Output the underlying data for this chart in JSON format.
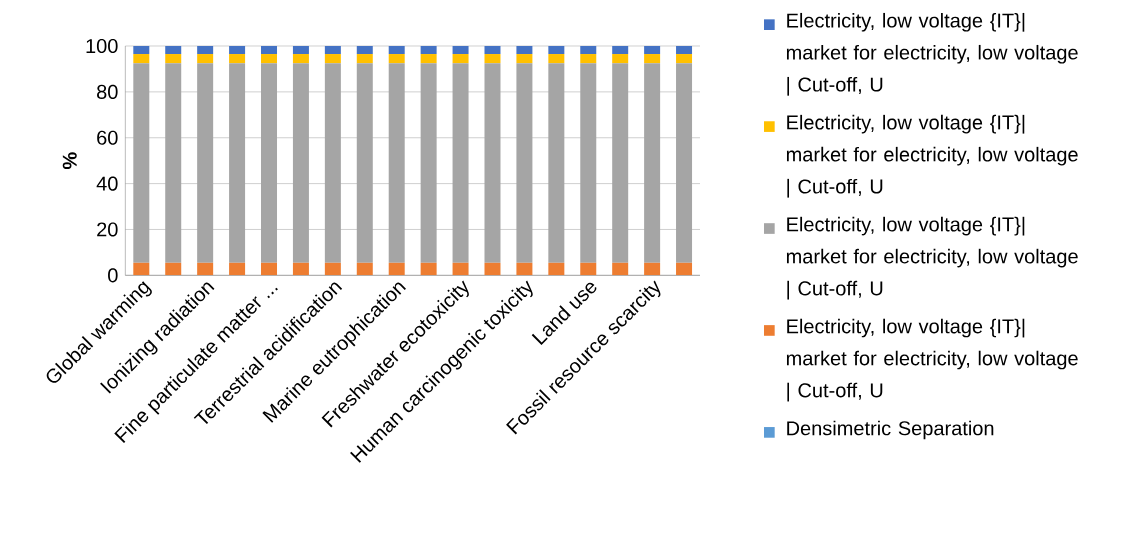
{
  "chart_data": {
    "type": "bar",
    "stacked": true,
    "ylabel": "%",
    "categories": [
      "Global warming",
      null,
      "Ionizing radiation",
      null,
      "Fine particulate matter ...",
      null,
      "Terrestrial acidification",
      null,
      "Marine eutrophication",
      null,
      "Freshwater ecotoxicity",
      null,
      "Human carcinogenic toxicity",
      null,
      "Land use",
      null,
      "Fossil resource scarcity",
      null
    ],
    "series": [
      {
        "name": "Densimetric Separation",
        "color": "#5b9bd5",
        "values": [
          0,
          0,
          0,
          0,
          0,
          0,
          0,
          0,
          0,
          0,
          0,
          0,
          0,
          0,
          0,
          0,
          0,
          0
        ]
      },
      {
        "name": "Electricity, low voltage {IT}| market for electricity, low voltage | Cut-off, U",
        "color": "#ed7d31",
        "values": [
          5.5,
          5.5,
          5.5,
          5.5,
          5.5,
          5.5,
          5.5,
          5.5,
          5.5,
          5.5,
          5.5,
          5.5,
          5.5,
          5.5,
          5.5,
          5.5,
          5.5,
          5.5
        ]
      },
      {
        "name": "Electricity, low voltage {IT}| market for electricity, low voltage | Cut-off, U",
        "color": "#a5a5a5",
        "values": [
          87,
          87,
          87,
          87,
          87,
          87,
          87,
          87,
          87,
          87,
          87,
          87,
          87,
          87,
          87,
          87,
          87,
          87
        ]
      },
      {
        "name": "Electricity, low voltage {IT}| market for electricity, low voltage | Cut-off, U",
        "color": "#ffc000",
        "values": [
          4,
          4,
          4,
          4,
          4,
          4,
          4,
          4,
          4,
          4,
          4,
          4,
          4,
          4,
          4,
          4,
          4,
          4
        ]
      },
      {
        "name": "Electricity, low voltage {IT}| market for electricity, low voltage | Cut-off, U",
        "color": "#4472c4",
        "values": [
          3.5,
          3.5,
          3.5,
          3.5,
          3.5,
          3.5,
          3.5,
          3.5,
          3.5,
          3.5,
          3.5,
          3.5,
          3.5,
          3.5,
          3.5,
          3.5,
          3.5,
          3.5
        ]
      }
    ],
    "ylim": [
      0,
      100
    ],
    "yticks": [
      0,
      20,
      40,
      60,
      80,
      100
    ],
    "grid": "y",
    "legend": "right"
  }
}
